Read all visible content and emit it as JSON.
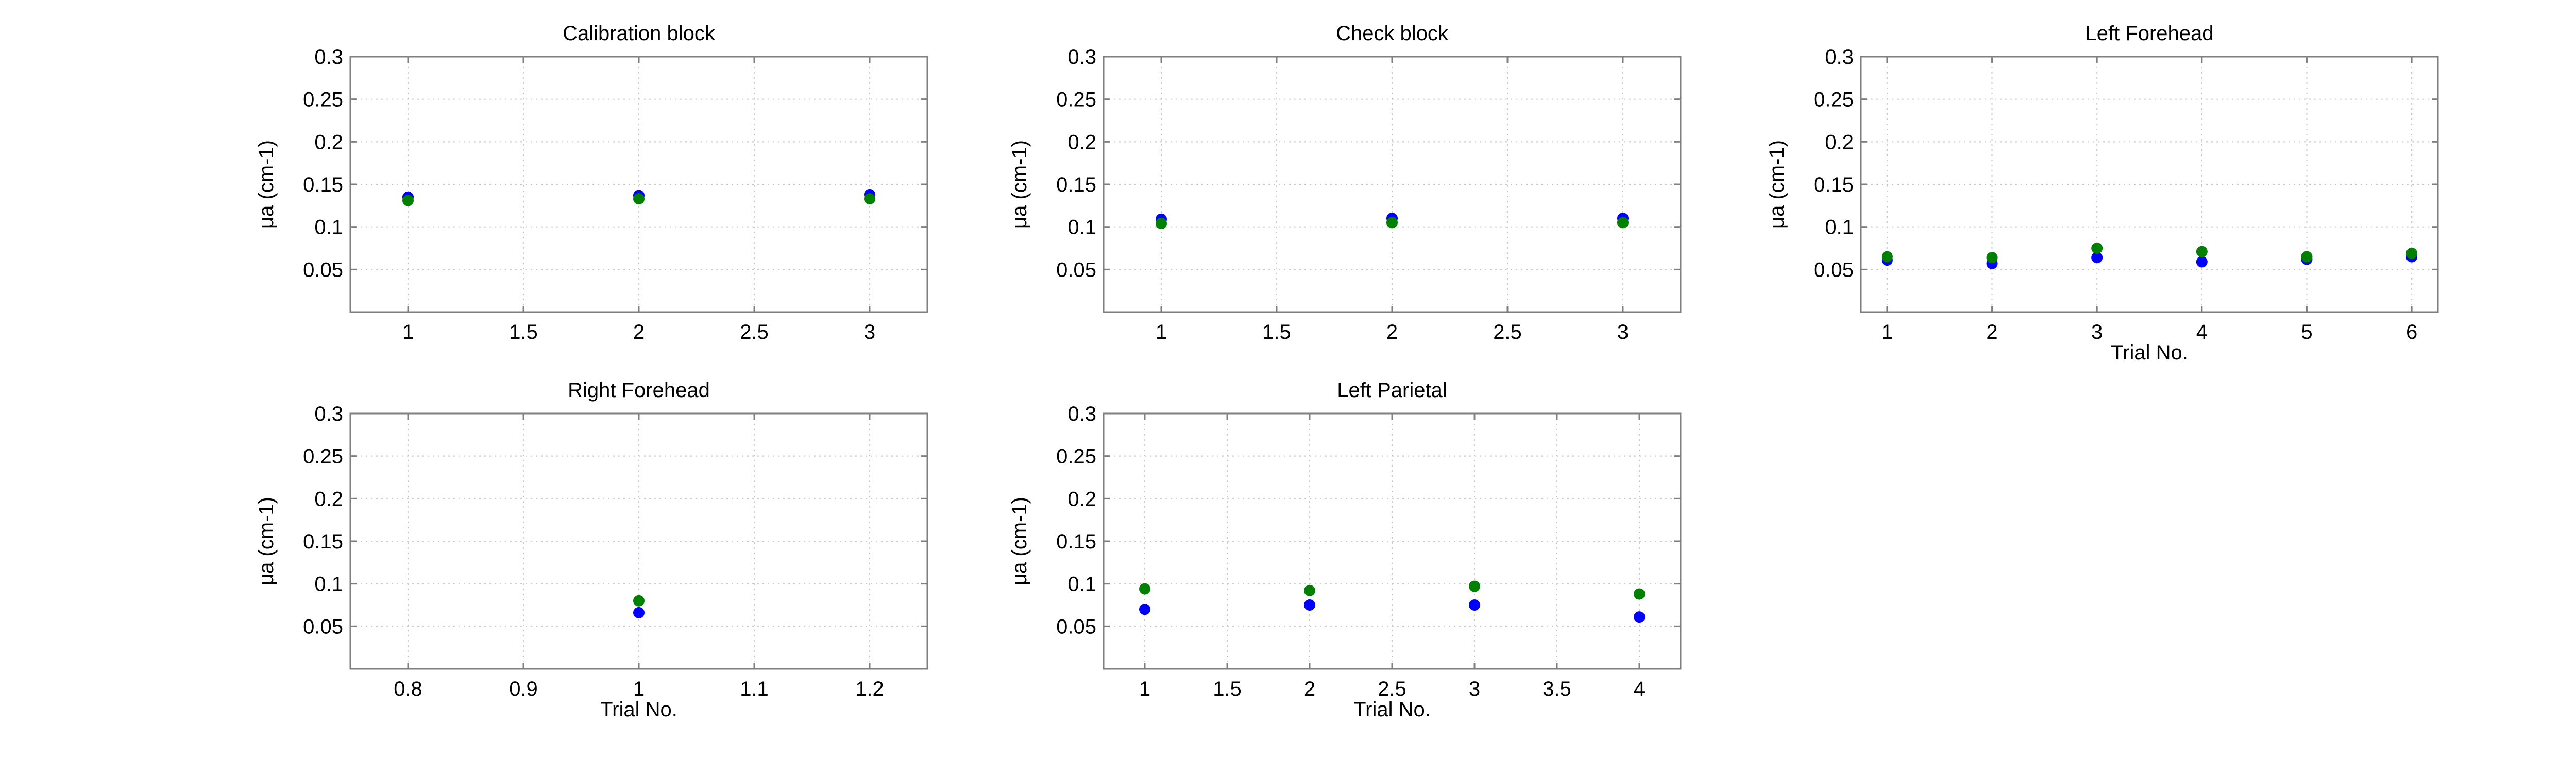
{
  "chart_data": [
    {
      "type": "scatter",
      "title": "Calibration block",
      "xlabel": "",
      "ylabel": "μa (cm-1)",
      "xlim": [
        0.75,
        3.25
      ],
      "ylim": [
        0,
        0.3
      ],
      "xticks": [
        1,
        1.5,
        2,
        2.5,
        3
      ],
      "xtick_labels": [
        "1",
        "1.5",
        "2",
        "2.5",
        "3"
      ],
      "yticks": [
        0.05,
        0.1,
        0.15,
        0.2,
        0.25,
        0.3
      ],
      "ytick_labels": [
        "0.05",
        "0.1",
        "0.15",
        "0.2",
        "0.25",
        "0.3"
      ],
      "grid": true,
      "series": [
        {
          "color": "#0000ff",
          "x": [
            1,
            2,
            3
          ],
          "y": [
            0.135,
            0.137,
            0.138
          ]
        },
        {
          "color": "#008000",
          "x": [
            1,
            2,
            3
          ],
          "y": [
            0.131,
            0.133,
            0.133
          ]
        }
      ]
    },
    {
      "type": "scatter",
      "title": "Check block",
      "xlabel": "",
      "ylabel": "μa (cm-1)",
      "xlim": [
        0.75,
        3.25
      ],
      "ylim": [
        0,
        0.3
      ],
      "xticks": [
        1,
        1.5,
        2,
        2.5,
        3
      ],
      "xtick_labels": [
        "1",
        "1.5",
        "2",
        "2.5",
        "3"
      ],
      "yticks": [
        0.05,
        0.1,
        0.15,
        0.2,
        0.25,
        0.3
      ],
      "ytick_labels": [
        "0.05",
        "0.1",
        "0.15",
        "0.2",
        "0.25",
        "0.3"
      ],
      "grid": true,
      "series": [
        {
          "color": "#0000ff",
          "x": [
            1,
            2,
            3
          ],
          "y": [
            0.109,
            0.11,
            0.11
          ]
        },
        {
          "color": "#008000",
          "x": [
            1,
            2,
            3
          ],
          "y": [
            0.104,
            0.105,
            0.105
          ]
        }
      ]
    },
    {
      "type": "scatter",
      "title": "Left Forehead",
      "xlabel": "Trial No.",
      "ylabel": "μa (cm-1)",
      "xlim": [
        0.75,
        6.25
      ],
      "ylim": [
        0,
        0.3
      ],
      "xticks": [
        1,
        2,
        3,
        4,
        5,
        6
      ],
      "xtick_labels": [
        "1",
        "2",
        "3",
        "4",
        "5",
        "6"
      ],
      "yticks": [
        0.05,
        0.1,
        0.15,
        0.2,
        0.25,
        0.3
      ],
      "ytick_labels": [
        "0.05",
        "0.1",
        "0.15",
        "0.2",
        "0.25",
        "0.3"
      ],
      "grid": true,
      "series": [
        {
          "color": "#0000ff",
          "x": [
            1,
            2,
            3,
            4,
            5,
            6
          ],
          "y": [
            0.061,
            0.057,
            0.064,
            0.059,
            0.062,
            0.065
          ]
        },
        {
          "color": "#008000",
          "x": [
            1,
            2,
            3,
            4,
            5,
            6
          ],
          "y": [
            0.065,
            0.064,
            0.075,
            0.071,
            0.065,
            0.069
          ]
        }
      ]
    },
    {
      "type": "scatter",
      "title": "Right Forehead",
      "xlabel": "Trial No.",
      "ylabel": "μa (cm-1)",
      "xlim": [
        0.75,
        1.25
      ],
      "ylim": [
        0,
        0.3
      ],
      "xticks": [
        0.8,
        0.9,
        1,
        1.1,
        1.2
      ],
      "xtick_labels": [
        "0.8",
        "0.9",
        "1",
        "1.1",
        "1.2"
      ],
      "yticks": [
        0.05,
        0.1,
        0.15,
        0.2,
        0.25,
        0.3
      ],
      "ytick_labels": [
        "0.05",
        "0.1",
        "0.15",
        "0.2",
        "0.25",
        "0.3"
      ],
      "grid": true,
      "series": [
        {
          "color": "#0000ff",
          "x": [
            1
          ],
          "y": [
            0.066
          ]
        },
        {
          "color": "#008000",
          "x": [
            1
          ],
          "y": [
            0.08
          ]
        }
      ]
    },
    {
      "type": "scatter",
      "title": "Left Parietal",
      "xlabel": "Trial No.",
      "ylabel": "μa (cm-1)",
      "xlim": [
        0.75,
        4.25
      ],
      "ylim": [
        0,
        0.3
      ],
      "xticks": [
        1,
        1.5,
        2,
        2.5,
        3,
        3.5,
        4
      ],
      "xtick_labels": [
        "1",
        "1.5",
        "2",
        "2.5",
        "3",
        "3.5",
        "4"
      ],
      "yticks": [
        0.05,
        0.1,
        0.15,
        0.2,
        0.25,
        0.3
      ],
      "ytick_labels": [
        "0.05",
        "0.1",
        "0.15",
        "0.2",
        "0.25",
        "0.3"
      ],
      "grid": true,
      "series": [
        {
          "color": "#0000ff",
          "x": [
            1,
            2,
            3,
            4
          ],
          "y": [
            0.07,
            0.075,
            0.075,
            0.061
          ]
        },
        {
          "color": "#008000",
          "x": [
            1,
            2,
            3,
            4
          ],
          "y": [
            0.094,
            0.092,
            0.097,
            0.088
          ]
        }
      ]
    }
  ]
}
